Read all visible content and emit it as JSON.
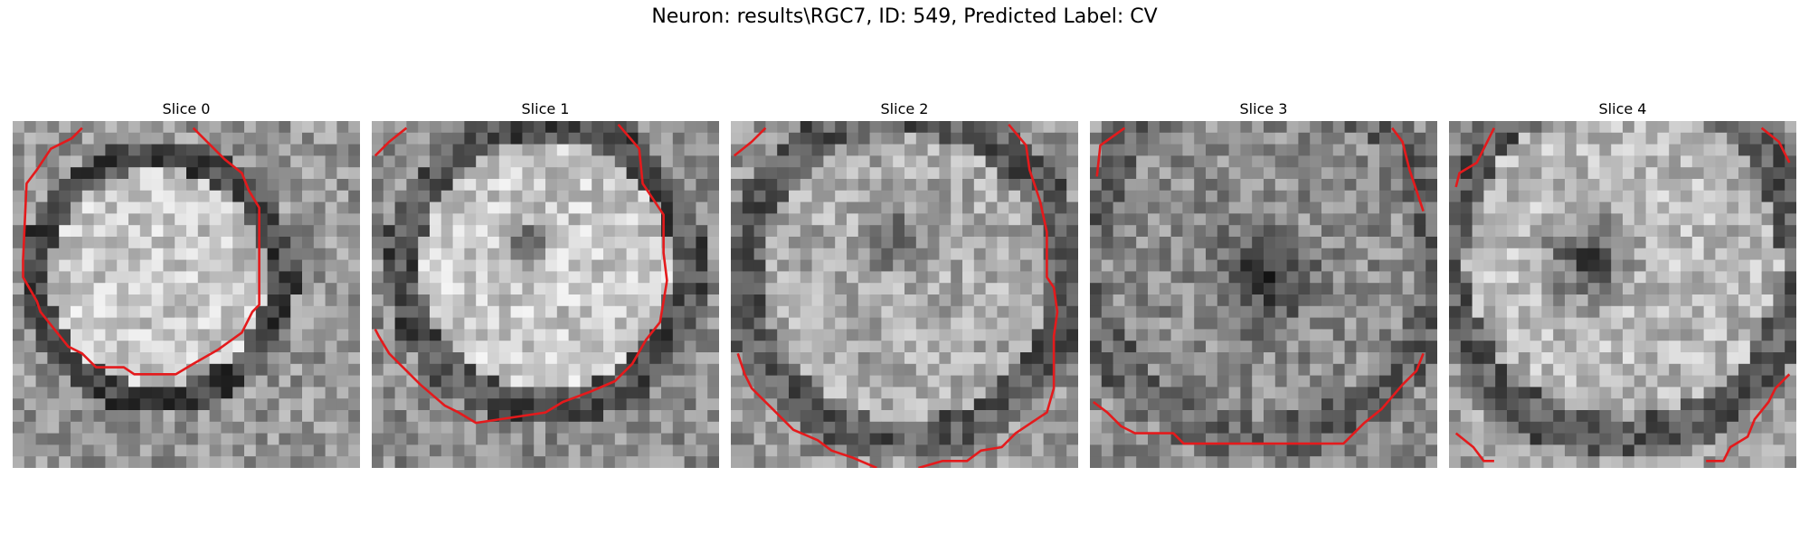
{
  "figure": {
    "title": "Neuron: results\\RGC7, ID: 549, Predicted Label: CV",
    "contour_color": "#e41a1c"
  },
  "slices": [
    {
      "label": "Slice 0"
    },
    {
      "label": "Slice 1"
    },
    {
      "label": "Slice 2"
    },
    {
      "label": "Slice 3"
    },
    {
      "label": "Slice 4"
    }
  ]
}
